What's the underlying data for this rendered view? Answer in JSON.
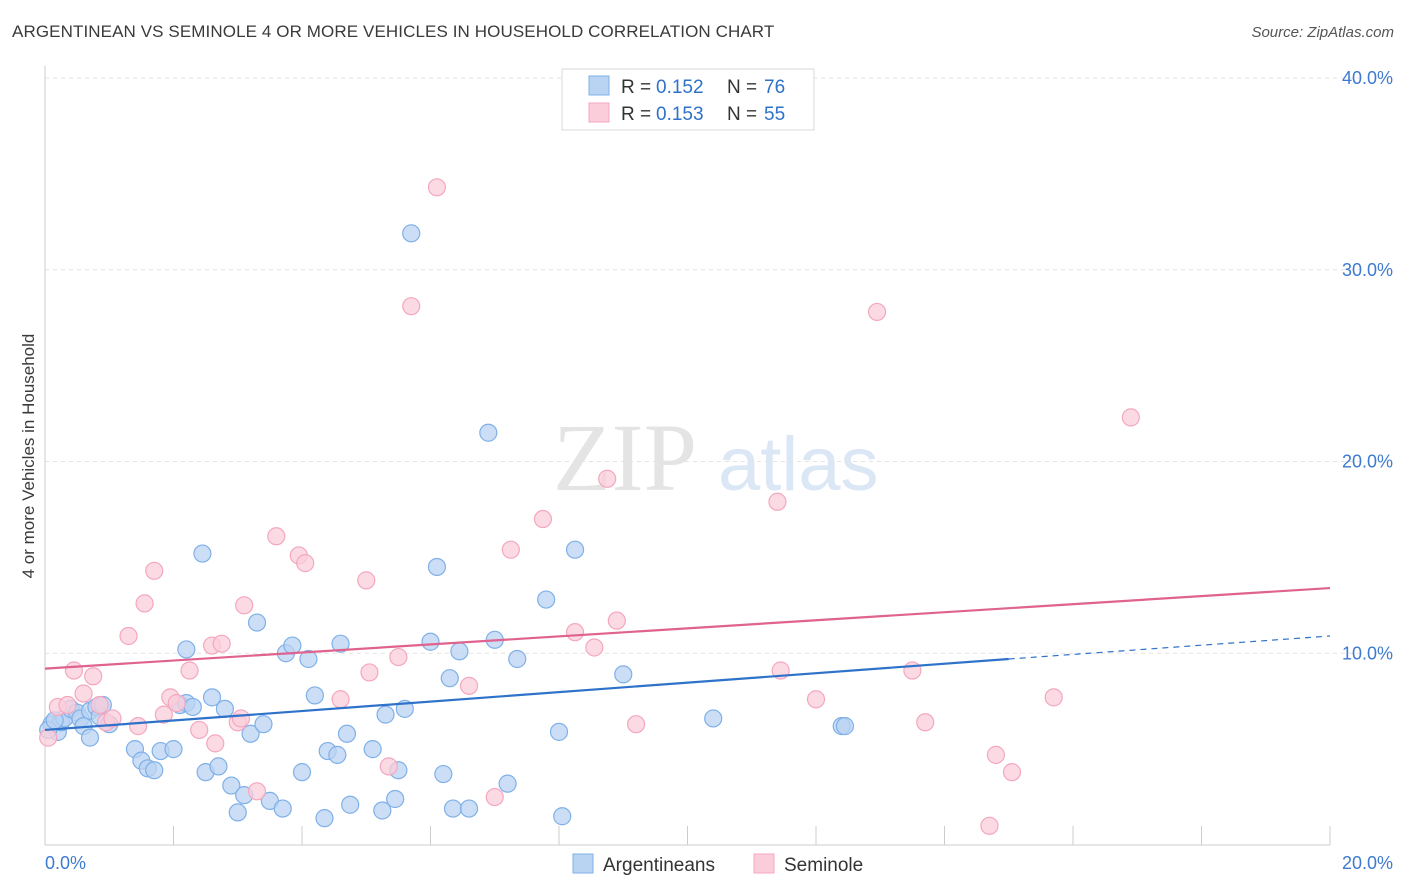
{
  "chart_data": {
    "type": "scatter",
    "title": "ARGENTINEAN VS SEMINOLE 4 OR MORE VEHICLES IN HOUSEHOLD CORRELATION CHART",
    "source": "Source: ZipAtlas.com",
    "xlabel": "",
    "ylabel": "4 or more Vehicles in Household",
    "xlim": [
      0,
      20
    ],
    "ylim": [
      0,
      40
    ],
    "x_ticks": [
      0,
      20
    ],
    "x_tick_labels": [
      "0.0%",
      "20.0%"
    ],
    "y_ticks": [
      10,
      20,
      30,
      40
    ],
    "y_tick_labels": [
      "10.0%",
      "20.0%",
      "30.0%",
      "40.0%"
    ],
    "grid": true,
    "watermark": {
      "bold": "ZIP",
      "light": "atlas"
    },
    "legend_position": "top-center",
    "legend": [
      {
        "r_label": "R =",
        "r_value": "0.152",
        "n_label": "N =",
        "n_value": "76"
      },
      {
        "r_label": "R =",
        "r_value": "0.153",
        "n_label": "N =",
        "n_value": "55"
      }
    ],
    "series": [
      {
        "name": "Argentineans",
        "color": "#7fb0e8",
        "line_color": "#2e72c9",
        "trend": {
          "x0": 0,
          "y0": 6.0,
          "x1": 15,
          "y1": 9.7,
          "dash_x1": 20,
          "dash_y1": 10.9
        },
        "points": [
          [
            0.1,
            6.3
          ],
          [
            0.2,
            5.9
          ],
          [
            0.25,
            6.4
          ],
          [
            0.3,
            6.6
          ],
          [
            0.4,
            7.1
          ],
          [
            0.5,
            6.9
          ],
          [
            0.55,
            6.6
          ],
          [
            0.6,
            6.2
          ],
          [
            0.7,
            5.6
          ],
          [
            0.7,
            7.0
          ],
          [
            0.8,
            7.2
          ],
          [
            0.85,
            6.7
          ],
          [
            0.9,
            7.3
          ],
          [
            1.0,
            6.3
          ],
          [
            1.4,
            5.0
          ],
          [
            1.5,
            4.4
          ],
          [
            1.6,
            4.0
          ],
          [
            1.7,
            3.9
          ],
          [
            1.8,
            4.9
          ],
          [
            2.0,
            5.0
          ],
          [
            2.1,
            7.3
          ],
          [
            2.2,
            7.4
          ],
          [
            2.2,
            10.2
          ],
          [
            2.3,
            7.2
          ],
          [
            2.45,
            15.2
          ],
          [
            2.5,
            3.8
          ],
          [
            2.6,
            7.7
          ],
          [
            2.7,
            4.1
          ],
          [
            2.8,
            7.1
          ],
          [
            2.9,
            3.1
          ],
          [
            3.0,
            1.7
          ],
          [
            3.1,
            2.6
          ],
          [
            3.2,
            5.8
          ],
          [
            3.3,
            11.6
          ],
          [
            3.4,
            6.3
          ],
          [
            3.5,
            2.3
          ],
          [
            3.7,
            1.9
          ],
          [
            3.75,
            10.0
          ],
          [
            3.85,
            10.4
          ],
          [
            4.0,
            3.8
          ],
          [
            4.1,
            9.7
          ],
          [
            4.2,
            7.8
          ],
          [
            4.35,
            1.4
          ],
          [
            4.4,
            4.9
          ],
          [
            4.55,
            4.7
          ],
          [
            4.6,
            10.5
          ],
          [
            4.7,
            5.8
          ],
          [
            4.75,
            2.1
          ],
          [
            5.1,
            5.0
          ],
          [
            5.25,
            1.8
          ],
          [
            5.3,
            6.8
          ],
          [
            5.45,
            2.4
          ],
          [
            5.5,
            3.9
          ],
          [
            5.6,
            7.1
          ],
          [
            5.7,
            31.9
          ],
          [
            6.0,
            10.6
          ],
          [
            6.1,
            14.5
          ],
          [
            6.2,
            3.7
          ],
          [
            6.3,
            8.7
          ],
          [
            6.35,
            1.9
          ],
          [
            6.45,
            10.1
          ],
          [
            6.6,
            1.9
          ],
          [
            6.9,
            21.5
          ],
          [
            7.0,
            10.7
          ],
          [
            7.2,
            3.2
          ],
          [
            7.35,
            9.7
          ],
          [
            7.8,
            12.8
          ],
          [
            8.0,
            5.9
          ],
          [
            8.05,
            1.5
          ],
          [
            8.25,
            15.4
          ],
          [
            9.0,
            8.9
          ],
          [
            10.4,
            6.6
          ],
          [
            12.4,
            6.2
          ],
          [
            12.45,
            6.2
          ],
          [
            0.05,
            6.0
          ],
          [
            0.15,
            6.5
          ]
        ]
      },
      {
        "name": "Seminole",
        "color": "#f4a7bf",
        "line_color": "#e0628f",
        "trend": {
          "x0": 0,
          "y0": 9.2,
          "x1": 20,
          "y1": 13.4
        },
        "points": [
          [
            0.05,
            5.6
          ],
          [
            0.2,
            7.2
          ],
          [
            0.35,
            7.3
          ],
          [
            0.45,
            9.1
          ],
          [
            0.6,
            7.9
          ],
          [
            0.75,
            8.8
          ],
          [
            0.85,
            7.3
          ],
          [
            0.95,
            6.4
          ],
          [
            1.05,
            6.6
          ],
          [
            1.3,
            10.9
          ],
          [
            1.45,
            6.2
          ],
          [
            1.55,
            12.6
          ],
          [
            1.7,
            14.3
          ],
          [
            1.85,
            6.8
          ],
          [
            1.95,
            7.7
          ],
          [
            2.05,
            7.4
          ],
          [
            2.25,
            9.1
          ],
          [
            2.4,
            6.0
          ],
          [
            2.6,
            10.4
          ],
          [
            2.65,
            5.3
          ],
          [
            2.75,
            10.5
          ],
          [
            3.0,
            6.4
          ],
          [
            3.05,
            6.6
          ],
          [
            3.1,
            12.5
          ],
          [
            3.3,
            2.8
          ],
          [
            3.6,
            16.1
          ],
          [
            3.95,
            15.1
          ],
          [
            4.05,
            14.7
          ],
          [
            4.6,
            7.6
          ],
          [
            5.0,
            13.8
          ],
          [
            5.05,
            9.0
          ],
          [
            5.35,
            4.1
          ],
          [
            5.5,
            9.8
          ],
          [
            5.7,
            28.1
          ],
          [
            6.1,
            34.3
          ],
          [
            6.6,
            8.3
          ],
          [
            7.0,
            2.5
          ],
          [
            7.25,
            15.4
          ],
          [
            7.75,
            17.0
          ],
          [
            8.25,
            11.1
          ],
          [
            8.55,
            10.3
          ],
          [
            8.75,
            19.1
          ],
          [
            8.9,
            11.7
          ],
          [
            9.2,
            6.3
          ],
          [
            11.4,
            17.9
          ],
          [
            11.45,
            9.1
          ],
          [
            12.0,
            7.6
          ],
          [
            12.95,
            27.8
          ],
          [
            13.5,
            9.1
          ],
          [
            13.7,
            6.4
          ],
          [
            14.7,
            1.0
          ],
          [
            14.8,
            4.7
          ],
          [
            15.05,
            3.8
          ],
          [
            15.7,
            7.7
          ],
          [
            16.9,
            22.3
          ]
        ]
      }
    ]
  }
}
